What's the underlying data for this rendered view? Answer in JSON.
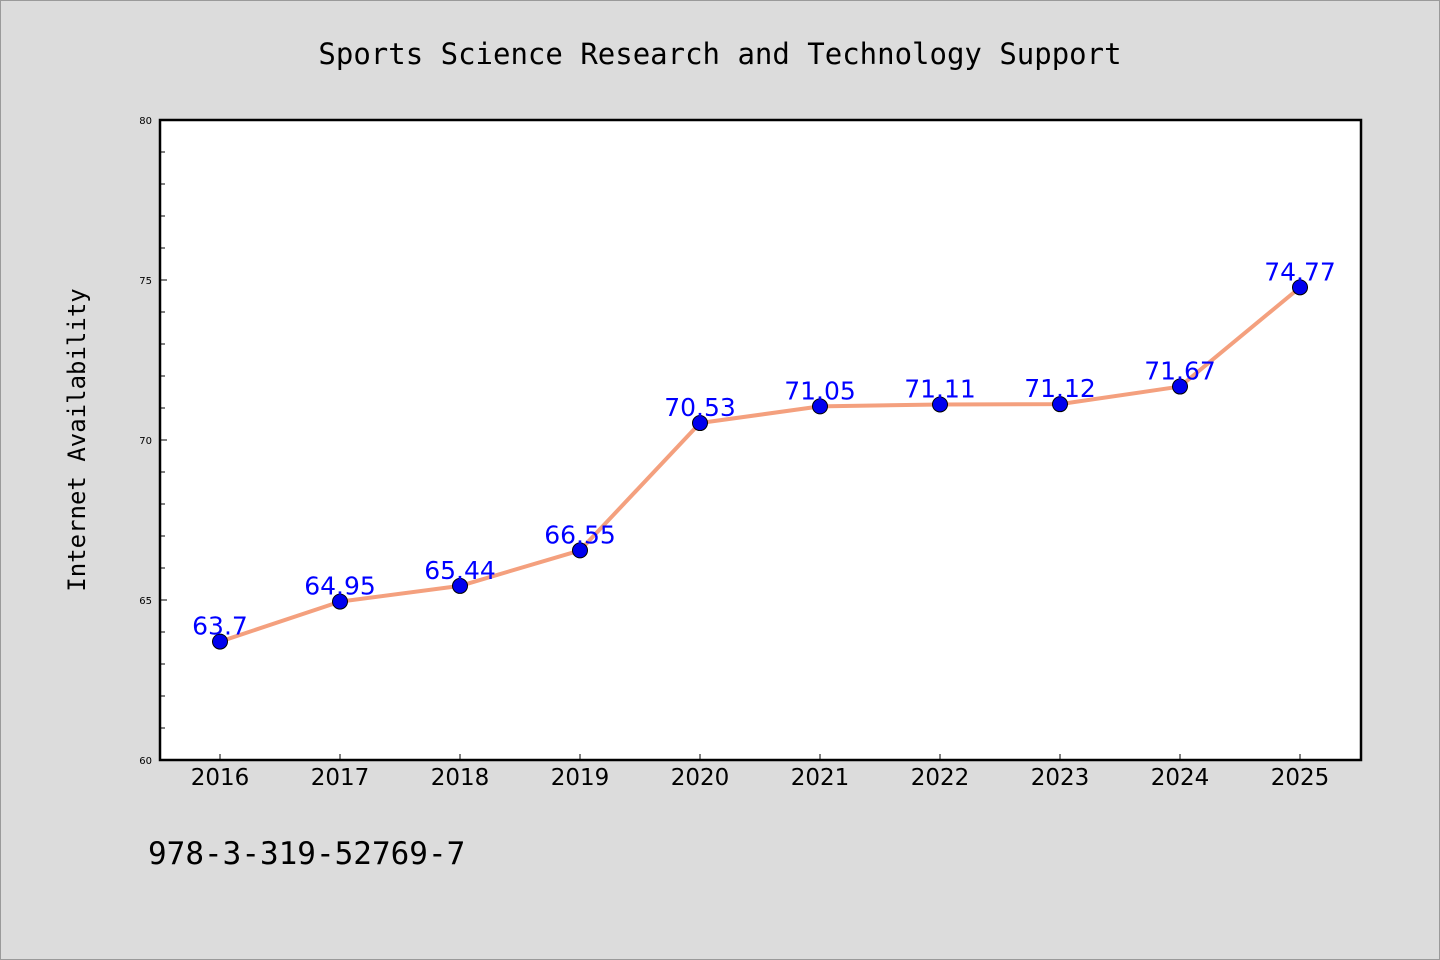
{
  "chart_data": {
    "type": "line",
    "title": "Sports Science Research and Technology Support",
    "xlabel": "",
    "ylabel": "Internet Availability",
    "categories": [
      "2016",
      "2017",
      "2018",
      "2019",
      "2020",
      "2021",
      "2022",
      "2023",
      "2024",
      "2025"
    ],
    "series": [
      {
        "values": [
          63.7,
          64.95,
          65.44,
          66.55,
          70.53,
          71.05,
          71.11,
          71.12,
          71.67,
          74.77
        ]
      }
    ],
    "data_labels": [
      "63.7",
      "64.95",
      "65.44",
      "66.55",
      "70.53",
      "71.05",
      "71.11",
      "71.12",
      "71.67",
      "74.77"
    ],
    "ylim": [
      60,
      80
    ],
    "yticks": [
      "60",
      "65",
      "70",
      "75",
      "80"
    ],
    "grid": false,
    "colors": {
      "line": "#f4a07e",
      "marker": "#0000ee",
      "label": "#0000ff",
      "background": "#dcdcdc",
      "plot_background": "#ffffff"
    }
  },
  "footer": {
    "text": "978-3-319-52769-7"
  }
}
